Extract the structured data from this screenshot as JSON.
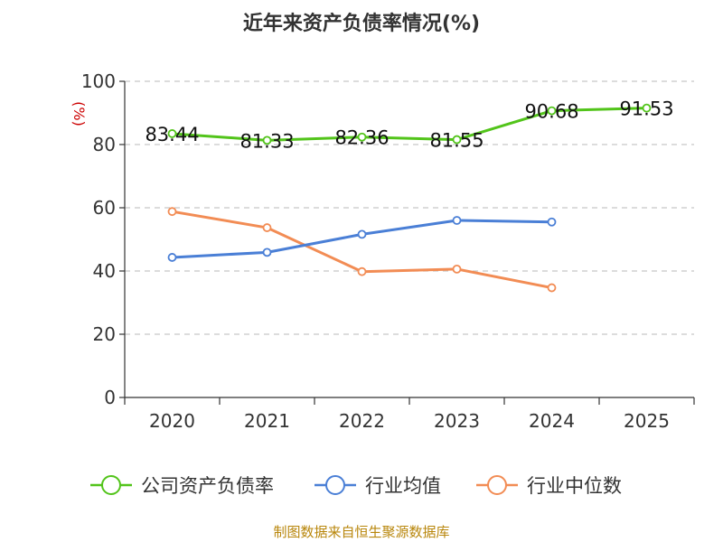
{
  "chart_data": {
    "type": "line",
    "title": "近年来资产负债率情况(%)",
    "ylabel": "(%)",
    "xlabel": "",
    "categories": [
      "2020",
      "2021",
      "2022",
      "2023",
      "2024",
      "2025"
    ],
    "ylim": [
      0,
      100
    ],
    "yticks": [
      0,
      20,
      40,
      60,
      80,
      100
    ],
    "grid": true,
    "legend_position": "bottom",
    "series": [
      {
        "name": "公司资产负债率",
        "color": "#52c41a",
        "values": [
          83.44,
          81.33,
          82.36,
          81.55,
          90.68,
          91.53
        ],
        "labels": [
          "83.44",
          "81.33",
          "82.36",
          "81.55",
          "90.68",
          "91.53"
        ]
      },
      {
        "name": "行业均值",
        "color": "#4a7fd6",
        "values": [
          44.3,
          45.9,
          51.6,
          56.0,
          55.5,
          null
        ]
      },
      {
        "name": "行业中位数",
        "color": "#f28c54",
        "values": [
          58.8,
          53.7,
          39.8,
          40.6,
          34.7,
          null
        ]
      }
    ]
  },
  "source": "制图数据来自恒生聚源数据库"
}
